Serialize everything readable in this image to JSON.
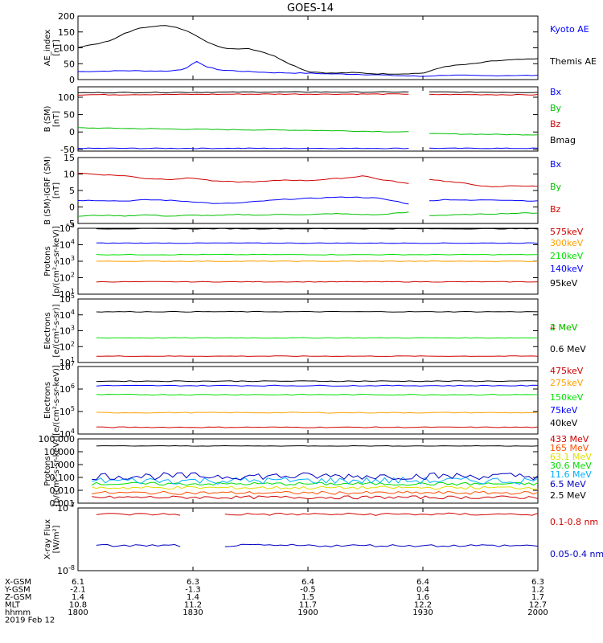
{
  "title": "GOES-14",
  "chart_data": [
    {
      "type": "line",
      "id": "ae",
      "ylabel": "AE_index\n[nT]",
      "yscale": "linear",
      "ylim": [
        0,
        200
      ],
      "yticks": [
        "0",
        "50",
        "100",
        "150",
        "200"
      ],
      "series": [
        {
          "name": "Kyoto AE",
          "color": "#0000ff",
          "points": [
            [
              0,
              25
            ],
            [
              0.04,
              26
            ],
            [
              0.1,
              28
            ],
            [
              0.16,
              27
            ],
            [
              0.2,
              27
            ],
            [
              0.23,
              33
            ],
            [
              0.26,
              57
            ],
            [
              0.28,
              40
            ],
            [
              0.31,
              30
            ],
            [
              0.36,
              26
            ],
            [
              0.42,
              22
            ],
            [
              0.5,
              20
            ],
            [
              0.55,
              18
            ],
            [
              0.6,
              17
            ],
            [
              0.65,
              15
            ],
            [
              0.7,
              12
            ],
            [
              0.75,
              10
            ],
            [
              0.8,
              14
            ],
            [
              0.88,
              12
            ],
            [
              0.94,
              13
            ],
            [
              1,
              13
            ]
          ]
        },
        {
          "name": "Themis AE",
          "color": "#000000",
          "points": [
            [
              0,
              102
            ],
            [
              0.03,
              110
            ],
            [
              0.06,
              118
            ],
            [
              0.08,
              128
            ],
            [
              0.1,
              145
            ],
            [
              0.13,
              160
            ],
            [
              0.16,
              168
            ],
            [
              0.19,
              170
            ],
            [
              0.22,
              162
            ],
            [
              0.25,
              145
            ],
            [
              0.28,
              120
            ],
            [
              0.31,
              100
            ],
            [
              0.34,
              97
            ],
            [
              0.37,
              98
            ],
            [
              0.4,
              88
            ],
            [
              0.43,
              72
            ],
            [
              0.46,
              50
            ],
            [
              0.5,
              25
            ],
            [
              0.55,
              20
            ],
            [
              0.6,
              22
            ],
            [
              0.65,
              18
            ],
            [
              0.7,
              18
            ],
            [
              0.75,
              20
            ],
            [
              0.8,
              42
            ],
            [
              0.86,
              50
            ],
            [
              0.9,
              58
            ],
            [
              0.94,
              62
            ],
            [
              1,
              65
            ]
          ]
        }
      ]
    },
    {
      "type": "line",
      "id": "bsm",
      "ylabel": "B (SM)\n[nT]",
      "yscale": "linear",
      "ylim": [
        -55,
        130
      ],
      "yticks": [
        "-50",
        "0",
        "50",
        "100"
      ],
      "gap": [
        0.72,
        0.76
      ],
      "series": [
        {
          "name": "Bx",
          "color": "#0000ff",
          "points": [
            [
              0,
              -47
            ],
            [
              1,
              -47
            ]
          ]
        },
        {
          "name": "By",
          "color": "#00c000",
          "points": [
            [
              0,
              12
            ],
            [
              0.3,
              7
            ],
            [
              0.5,
              5
            ],
            [
              0.72,
              0
            ],
            [
              0.76,
              -5
            ],
            [
              1,
              -8
            ]
          ]
        },
        {
          "name": "Bz",
          "color": "#d00000",
          "points": [
            [
              0,
              107
            ],
            [
              0.4,
              109
            ],
            [
              0.72,
              109
            ],
            [
              0.76,
              108
            ],
            [
              1,
              107
            ]
          ]
        },
        {
          "name": "Bmag",
          "color": "#000000",
          "points": [
            [
              0,
              113
            ],
            [
              0.4,
              115
            ],
            [
              0.72,
              115
            ],
            [
              0.76,
              115
            ],
            [
              1,
              114
            ]
          ]
        }
      ]
    },
    {
      "type": "line",
      "id": "bdiff",
      "ylabel": "B (SM)-IGRF (SM)\n[nT]",
      "yscale": "linear",
      "ylim": [
        -5,
        15
      ],
      "yticks": [
        "-5",
        "0",
        "5",
        "10",
        "15"
      ],
      "gap": [
        0.72,
        0.76
      ],
      "series": [
        {
          "name": "Bx",
          "color": "#0000ff",
          "points": [
            [
              0,
              2
            ],
            [
              0.05,
              2
            ],
            [
              0.1,
              1.8
            ],
            [
              0.15,
              2.2
            ],
            [
              0.2,
              2
            ],
            [
              0.25,
              1.6
            ],
            [
              0.3,
              1
            ],
            [
              0.35,
              1.2
            ],
            [
              0.4,
              1.8
            ],
            [
              0.45,
              2.3
            ],
            [
              0.5,
              2.6
            ],
            [
              0.55,
              2.9
            ],
            [
              0.6,
              3
            ],
            [
              0.65,
              2.7
            ],
            [
              0.7,
              1.5
            ],
            [
              0.72,
              0.8
            ],
            [
              0.76,
              1.8
            ],
            [
              0.8,
              2.3
            ],
            [
              0.85,
              2
            ],
            [
              0.9,
              2.2
            ],
            [
              0.95,
              2
            ],
            [
              1,
              1.8
            ]
          ]
        },
        {
          "name": "By",
          "color": "#00c000",
          "points": [
            [
              0,
              -2.8
            ],
            [
              0.05,
              -2.5
            ],
            [
              0.1,
              -2.7
            ],
            [
              0.15,
              -2.4
            ],
            [
              0.2,
              -2.8
            ],
            [
              0.25,
              -2.5
            ],
            [
              0.3,
              -2.6
            ],
            [
              0.35,
              -2.3
            ],
            [
              0.4,
              -2.5
            ],
            [
              0.45,
              -2.2
            ],
            [
              0.5,
              -2.4
            ],
            [
              0.55,
              -2
            ],
            [
              0.6,
              -2.2
            ],
            [
              0.65,
              -2.4
            ],
            [
              0.7,
              -1.8
            ],
            [
              0.72,
              -1.6
            ],
            [
              0.76,
              -2.6
            ],
            [
              0.8,
              -2.5
            ],
            [
              0.85,
              -2.3
            ],
            [
              0.9,
              -2.1
            ],
            [
              0.95,
              -1.9
            ],
            [
              1,
              -1.8
            ]
          ]
        },
        {
          "name": "Bz",
          "color": "#d00000",
          "points": [
            [
              0,
              10.3
            ],
            [
              0.05,
              9.8
            ],
            [
              0.1,
              9.5
            ],
            [
              0.15,
              8.6
            ],
            [
              0.2,
              8.4
            ],
            [
              0.25,
              8.8
            ],
            [
              0.3,
              7.8
            ],
            [
              0.35,
              7.6
            ],
            [
              0.4,
              7.7
            ],
            [
              0.45,
              8.2
            ],
            [
              0.5,
              8
            ],
            [
              0.55,
              8.5
            ],
            [
              0.6,
              9
            ],
            [
              0.62,
              9.6
            ],
            [
              0.65,
              8.5
            ],
            [
              0.7,
              7.5
            ],
            [
              0.72,
              7
            ],
            [
              0.76,
              8.5
            ],
            [
              0.8,
              7.8
            ],
            [
              0.85,
              7
            ],
            [
              0.9,
              6
            ],
            [
              0.95,
              6.5
            ],
            [
              1,
              6.2
            ]
          ]
        }
      ]
    },
    {
      "type": "line",
      "id": "protons-low",
      "ylabel": "Protons\n[p/(cm²-s-sr-keV)]",
      "yscale": "log",
      "ylim": [
        1,
        5
      ],
      "yticks": [
        "10^1",
        "10^2",
        "10^3",
        "10^4",
        "10^5"
      ],
      "series": [
        {
          "name": "575keV",
          "color": "#d00000",
          "logvalue": 1.75
        },
        {
          "name": "300keV",
          "color": "#ffa000",
          "logvalue": 3.0
        },
        {
          "name": "210keV",
          "color": "#00e000",
          "logvalue": 3.4
        },
        {
          "name": "140keV",
          "color": "#0000ff",
          "logvalue": 4.1
        },
        {
          "name": "95keV",
          "color": "#000000",
          "logvalue": 4.97
        }
      ]
    },
    {
      "type": "line",
      "id": "electrons-high",
      "ylabel": "Electrons\n[e/(cm²-s-sr)]",
      "yscale": "log",
      "ylim": [
        1,
        5
      ],
      "yticks": [
        "10^1",
        "10^2",
        "10^3",
        "10^4",
        "10^5"
      ],
      "series": [
        {
          "name": "4 MeV",
          "color": "#d00000",
          "logvalue": 1.4
        },
        {
          "name": "2 MeV",
          "color": "#00e000",
          "logvalue": 2.55
        },
        {
          "name": "0.6 MeV",
          "color": "#000000",
          "logvalue": 4.2
        }
      ]
    },
    {
      "type": "line",
      "id": "electrons-low",
      "ylabel": "Electrons\n[e/(cm²-s-sr-keV)]",
      "yscale": "log",
      "ylim": [
        4,
        7
      ],
      "yticks": [
        "10^4",
        "10^5",
        "10^6",
        "10^7"
      ],
      "series": [
        {
          "name": "475keV",
          "color": "#d00000",
          "logvalue": 4.3
        },
        {
          "name": "275keV",
          "color": "#ffa000",
          "logvalue": 4.95
        },
        {
          "name": "150keV",
          "color": "#00e000",
          "logvalue": 5.75
        },
        {
          "name": "75keV",
          "color": "#0000ff",
          "logvalue": 6.15
        },
        {
          "name": "40keV",
          "color": "#000000",
          "logvalue": 6.35
        }
      ]
    },
    {
      "type": "line",
      "id": "protons-high",
      "ylabel": "Protons\n[p/(cm²-s-sr-keV)]",
      "yscale": "log",
      "ylim": [
        -3,
        2
      ],
      "yticks": [
        "0.001",
        "0.010",
        "0.100",
        "1.000",
        "10.000",
        "100.000"
      ],
      "series": [
        {
          "name": "433 MeV",
          "color": "#d00000",
          "logvalue": -2.55
        },
        {
          "name": "165 MeV",
          "color": "#ff5000",
          "logvalue": -2.2
        },
        {
          "name": "63.1 MeV",
          "color": "#e0e000",
          "logvalue": -1.8
        },
        {
          "name": "30.6 MeV",
          "color": "#00e000",
          "logvalue": -1.5
        },
        {
          "name": "11.6 MeV",
          "color": "#00b0ff",
          "logvalue": -1.25
        },
        {
          "name": "6.5 MeV",
          "color": "#0000c0",
          "logvalue": -0.9
        },
        {
          "name": "2.5 MeV",
          "color": "#000000",
          "logvalue": 1.45
        }
      ]
    },
    {
      "type": "line",
      "id": "xray",
      "ylabel": "X-ray Flux\n[W/m²]",
      "yscale": "log",
      "ylim": [
        -8,
        -7
      ],
      "yticks": [
        "10^-8",
        "10^-7"
      ],
      "gap": [
        0.23,
        0.31
      ],
      "series": [
        {
          "name": "0.1-0.8 nm",
          "color": "#d00000",
          "logvalue": -7.1
        },
        {
          "name": "0.05-0.4 nm",
          "color": "#0000c0",
          "logvalue": -7.6
        }
      ]
    }
  ],
  "xaxis": {
    "ticks": [
      "1800",
      "1830",
      "1900",
      "1930",
      "2000"
    ],
    "rows": [
      {
        "label": "X-GSM",
        "values": [
          "6.1",
          "6.3",
          "6.4",
          "6.4",
          "6.3"
        ]
      },
      {
        "label": "Y-GSM",
        "values": [
          "-2.1",
          "-1.3",
          "-0.5",
          "0.4",
          "1.2"
        ]
      },
      {
        "label": "Z-GSM",
        "values": [
          "1.4",
          "1.4",
          "1.5",
          "1.6",
          "1.7"
        ]
      },
      {
        "label": "MLT",
        "values": [
          "10.8",
          "11.2",
          "11.7",
          "12.2",
          "12.7"
        ]
      },
      {
        "label": "hhmm",
        "values": [
          "1800",
          "1830",
          "1900",
          "1930",
          "2000"
        ]
      }
    ],
    "date": "2019 Feb 12"
  }
}
